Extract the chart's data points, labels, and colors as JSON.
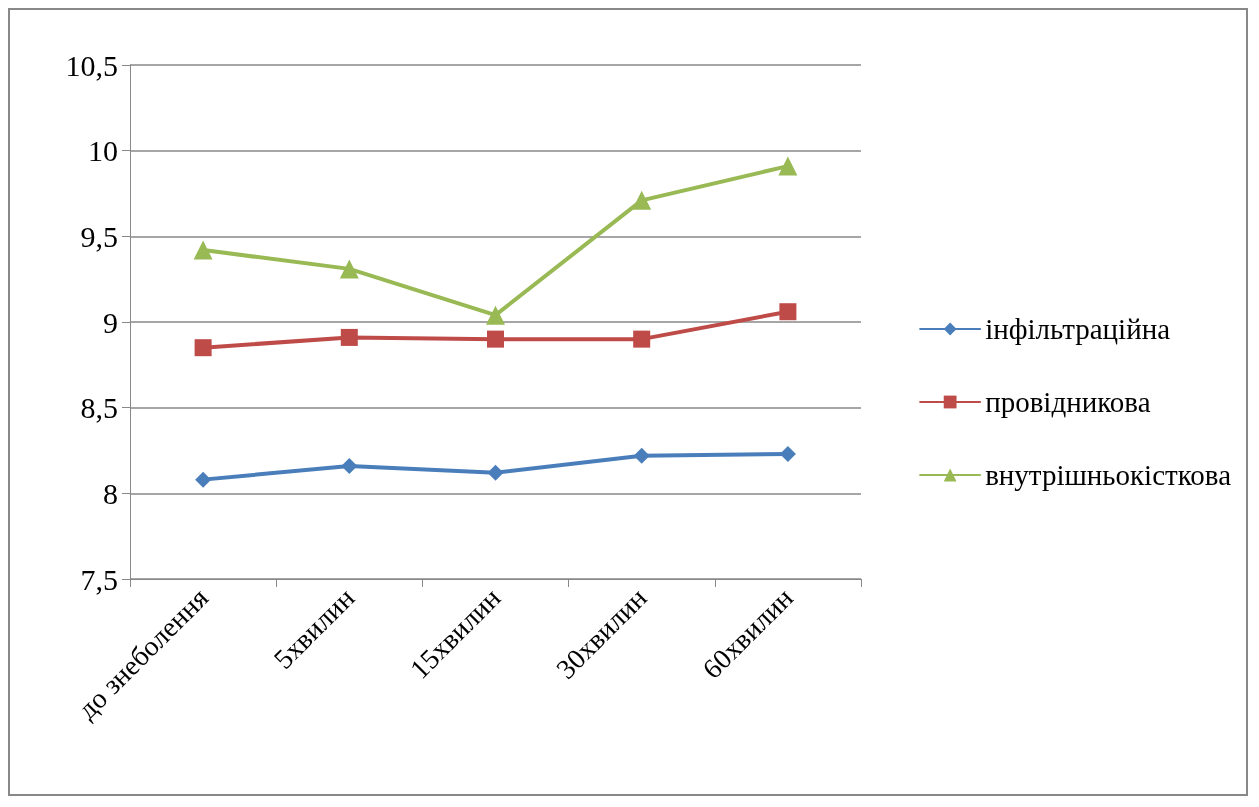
{
  "chart_data": {
    "type": "line",
    "categories": [
      "до знеболення",
      "5хвилин",
      "15хвилин",
      "30хвилин",
      "60хвилин"
    ],
    "series": [
      {
        "name": "інфільтраційна",
        "color": "#4a7ebb",
        "marker": "diamond",
        "values": [
          8.08,
          8.16,
          8.12,
          8.22,
          8.23
        ]
      },
      {
        "name": "провідникова",
        "color": "#be4b48",
        "marker": "square",
        "values": [
          8.85,
          8.91,
          8.9,
          8.9,
          9.06
        ]
      },
      {
        "name": "внутрішньокісткова",
        "color": "#98b954",
        "marker": "triangle",
        "values": [
          9.42,
          9.31,
          9.04,
          9.71,
          9.91
        ]
      }
    ],
    "ylim": [
      7.5,
      10.5
    ],
    "yticks": [
      {
        "value": 7.5,
        "label": "7,5"
      },
      8,
      {
        "value": 8.5,
        "label": "8,5"
      },
      9,
      {
        "value": 9.5,
        "label": "9,5"
      },
      10,
      {
        "value": 10.5,
        "label": "10,5"
      }
    ],
    "grid": "y",
    "legend": "right",
    "line_style": "solid"
  }
}
